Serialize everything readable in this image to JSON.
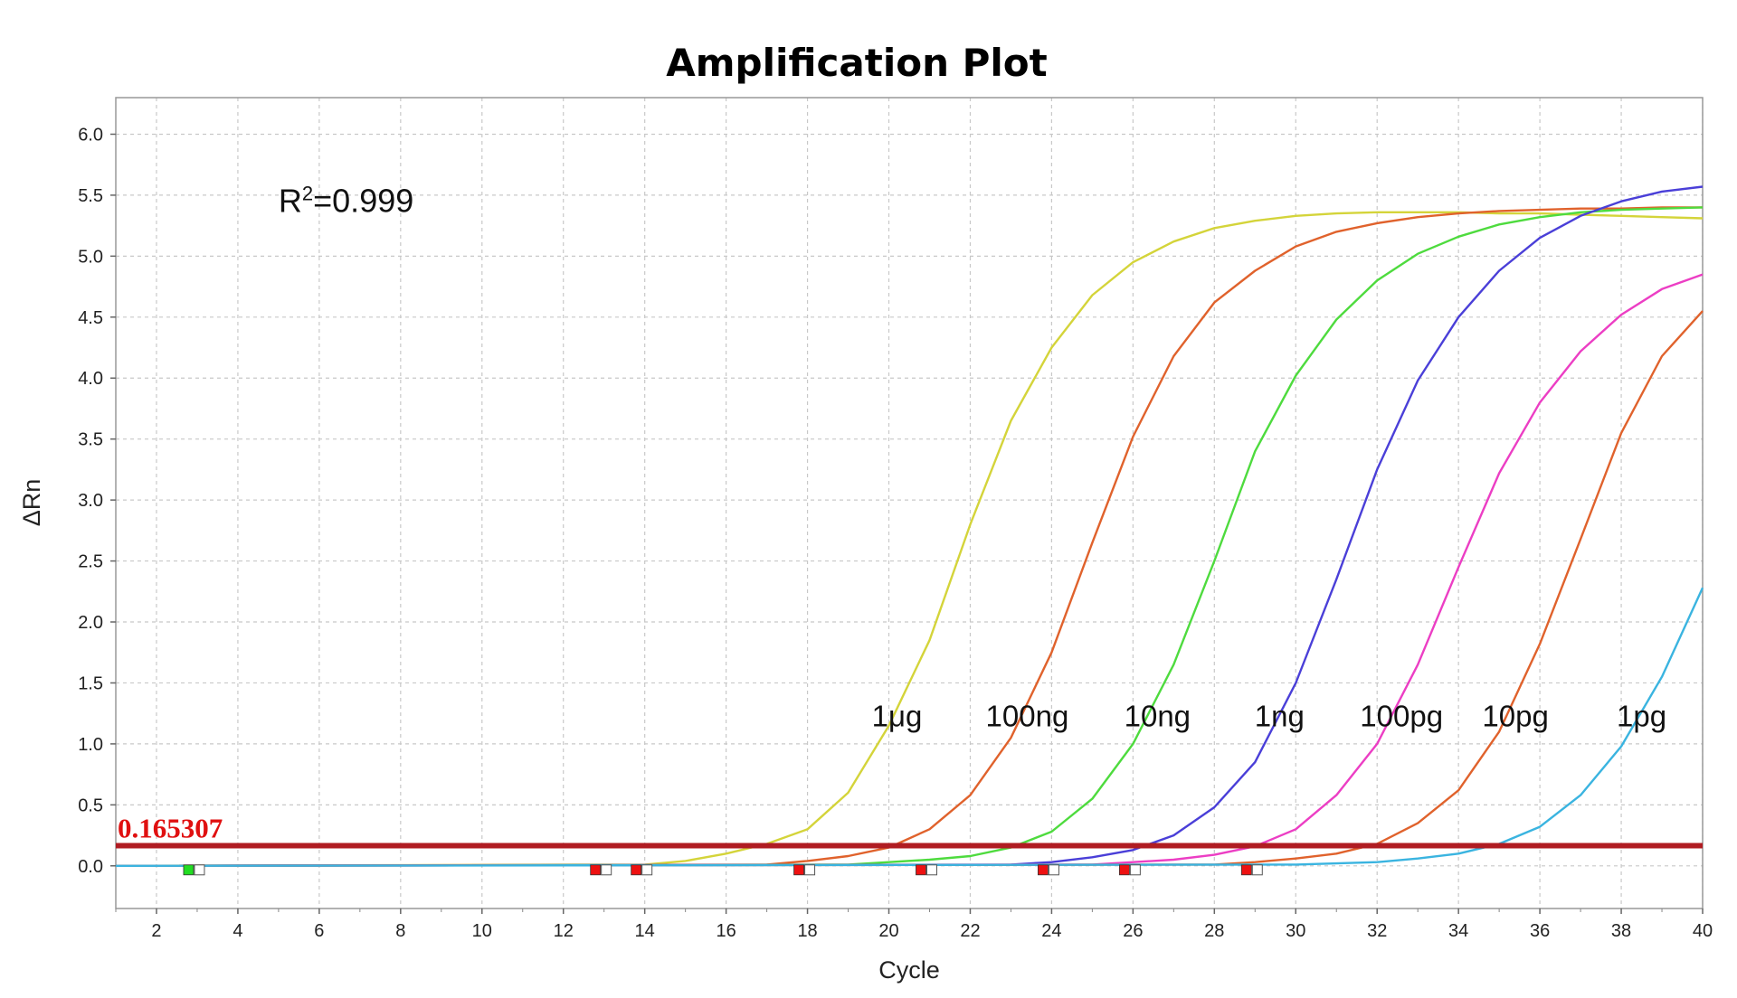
{
  "chart_data": {
    "type": "line",
    "title": "Amplification Plot",
    "xlabel": "Cycle",
    "ylabel": "ΔRn",
    "xlim": [
      1,
      40
    ],
    "ylim": [
      -0.35,
      6.3
    ],
    "xticks": [
      "2",
      "4",
      "6",
      "8",
      "10",
      "12",
      "14",
      "16",
      "18",
      "20",
      "22",
      "24",
      "26",
      "28",
      "30",
      "32",
      "34",
      "36",
      "38",
      "40"
    ],
    "yticks": [
      "0.0",
      "0.5",
      "1.0",
      "1.5",
      "2.0",
      "2.5",
      "3.0",
      "3.5",
      "4.0",
      "4.5",
      "5.0",
      "5.5",
      "6.0"
    ],
    "grid": true,
    "annotation": {
      "prefix": "R",
      "sup": "2",
      "suffix": "=0.999",
      "x": 5.0,
      "y": 5.45
    },
    "threshold": {
      "value": 0.165307,
      "label": "0.165307",
      "color": "#b01c22"
    },
    "baseline_markers": [
      {
        "cycle": 3,
        "color": "#22dd22"
      },
      {
        "cycle": 13,
        "color": "#ee1111"
      },
      {
        "cycle": 14,
        "color": "#ee1111"
      },
      {
        "cycle": 18,
        "color": "#ee1111"
      },
      {
        "cycle": 21,
        "color": "#ee1111"
      },
      {
        "cycle": 24,
        "color": "#ee1111"
      },
      {
        "cycle": 26,
        "color": "#ee1111"
      },
      {
        "cycle": 29,
        "color": "#ee1111"
      }
    ],
    "series": [
      {
        "name": "1μg",
        "color": "#d4d43a",
        "label_pos": [
          20.2,
          1.1
        ],
        "x": [
          1,
          14,
          15,
          16,
          17,
          18,
          19,
          20,
          21,
          22,
          23,
          24,
          25,
          26,
          27,
          28,
          29,
          30,
          31,
          32,
          33,
          34,
          35,
          36,
          37,
          38,
          39,
          40
        ],
        "y": [
          0,
          0.01,
          0.04,
          0.1,
          0.18,
          0.3,
          0.6,
          1.15,
          1.85,
          2.8,
          3.65,
          4.25,
          4.68,
          4.95,
          5.12,
          5.23,
          5.29,
          5.33,
          5.35,
          5.36,
          5.36,
          5.36,
          5.35,
          5.35,
          5.34,
          5.33,
          5.32,
          5.31
        ]
      },
      {
        "name": "100ng",
        "color": "#e0622c",
        "label_pos": [
          23.4,
          1.1
        ],
        "x": [
          1,
          17,
          18,
          19,
          20,
          21,
          22,
          23,
          24,
          25,
          26,
          27,
          28,
          29,
          30,
          31,
          32,
          33,
          34,
          35,
          36,
          37,
          38,
          39,
          40
        ],
        "y": [
          0,
          0.01,
          0.04,
          0.08,
          0.15,
          0.3,
          0.58,
          1.05,
          1.75,
          2.65,
          3.52,
          4.18,
          4.62,
          4.88,
          5.08,
          5.2,
          5.27,
          5.32,
          5.35,
          5.37,
          5.38,
          5.39,
          5.39,
          5.4,
          5.4
        ]
      },
      {
        "name": "10ng",
        "color": "#4edb3e",
        "label_pos": [
          26.6,
          1.1
        ],
        "x": [
          1,
          19,
          20,
          21,
          22,
          23,
          24,
          25,
          26,
          27,
          28,
          29,
          30,
          31,
          32,
          33,
          34,
          35,
          36,
          37,
          38,
          39,
          40
        ],
        "y": [
          0,
          0.01,
          0.03,
          0.05,
          0.08,
          0.15,
          0.28,
          0.55,
          1.0,
          1.65,
          2.5,
          3.4,
          4.02,
          4.48,
          4.8,
          5.02,
          5.16,
          5.26,
          5.32,
          5.36,
          5.38,
          5.39,
          5.4
        ]
      },
      {
        "name": "1ng",
        "color": "#4a3fd8",
        "label_pos": [
          29.6,
          1.1
        ],
        "x": [
          1,
          23,
          24,
          25,
          26,
          27,
          28,
          29,
          30,
          31,
          32,
          33,
          34,
          35,
          36,
          37,
          38,
          39,
          40
        ],
        "y": [
          0,
          0.01,
          0.03,
          0.07,
          0.13,
          0.25,
          0.48,
          0.85,
          1.5,
          2.35,
          3.25,
          3.98,
          4.5,
          4.88,
          5.15,
          5.33,
          5.45,
          5.53,
          5.57
        ]
      },
      {
        "name": "100pg",
        "color": "#ec3ec4",
        "label_pos": [
          32.6,
          1.1
        ],
        "x": [
          1,
          25,
          26,
          27,
          28,
          29,
          30,
          31,
          32,
          33,
          34,
          35,
          36,
          37,
          38,
          39,
          40
        ],
        "y": [
          0,
          0.01,
          0.03,
          0.05,
          0.09,
          0.16,
          0.3,
          0.58,
          1.0,
          1.65,
          2.45,
          3.22,
          3.8,
          4.22,
          4.52,
          4.73,
          4.85
        ]
      },
      {
        "name": "10pg",
        "color": "#e0622c",
        "label_pos": [
          35.4,
          1.1
        ],
        "x": [
          1,
          28,
          29,
          30,
          31,
          32,
          33,
          34,
          35,
          36,
          37,
          38,
          39,
          40
        ],
        "y": [
          0,
          0.01,
          0.03,
          0.06,
          0.1,
          0.18,
          0.35,
          0.62,
          1.1,
          1.82,
          2.68,
          3.55,
          4.18,
          4.55
        ]
      },
      {
        "name": "1pg",
        "color": "#3ab4e0",
        "label_pos": [
          38.5,
          1.1
        ],
        "x": [
          1,
          30,
          31,
          32,
          33,
          34,
          35,
          36,
          37,
          38,
          39,
          40
        ],
        "y": [
          0,
          0.01,
          0.02,
          0.03,
          0.06,
          0.1,
          0.18,
          0.32,
          0.58,
          0.98,
          1.55,
          2.28
        ]
      }
    ]
  }
}
